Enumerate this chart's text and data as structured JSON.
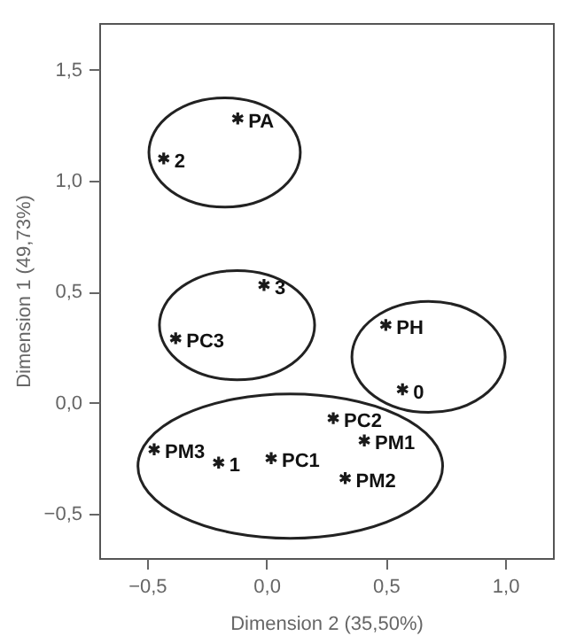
{
  "chart_data": {
    "type": "scatter",
    "xlabel": "Dimension 2 (35,50%)",
    "ylabel": "Dimension 1 (49,73%)",
    "x": [
      -0.12,
      -0.43,
      -0.01,
      -0.38,
      0.5,
      0.57,
      0.28,
      0.41,
      0.33,
      0.02,
      -0.47,
      -0.2
    ],
    "values": [
      1.28,
      1.1,
      0.53,
      0.29,
      0.35,
      0.06,
      -0.07,
      -0.17,
      -0.34,
      -0.25,
      -0.21,
      -0.27
    ],
    "color": "#1a1a1a",
    "marker": "cross",
    "grid": false,
    "xlim": [
      -0.7,
      1.2
    ],
    "ylim": [
      -0.7,
      1.71
    ],
    "xticks": [
      {
        "value": -0.5,
        "label": "−0,5"
      },
      {
        "value": 0,
        "label": "0,0"
      },
      {
        "value": 0.5,
        "label": "0,5"
      },
      {
        "value": 1,
        "label": "1,0"
      }
    ],
    "yticks": [
      {
        "value": -0.5,
        "label": "−0,5"
      },
      {
        "value": 0,
        "label": "0,0"
      },
      {
        "value": 0.5,
        "label": "0,5"
      },
      {
        "value": 1,
        "label": "1,0"
      },
      {
        "value": 1.5,
        "label": "1,5"
      }
    ],
    "annotations": [
      {
        "text": "PA",
        "x": -0.12,
        "y": 1.28
      },
      {
        "text": "2",
        "x": -0.43,
        "y": 1.1
      },
      {
        "text": "3",
        "x": -0.01,
        "y": 0.53
      },
      {
        "text": "PC3",
        "x": -0.38,
        "y": 0.29
      },
      {
        "text": "PH",
        "x": 0.5,
        "y": 0.35
      },
      {
        "text": "0",
        "x": 0.57,
        "y": 0.06
      },
      {
        "text": "PC2",
        "x": 0.28,
        "y": -0.07
      },
      {
        "text": "PM1",
        "x": 0.41,
        "y": -0.17
      },
      {
        "text": "PM2",
        "x": 0.33,
        "y": -0.34
      },
      {
        "text": "PC1",
        "x": 0.02,
        "y": -0.25
      },
      {
        "text": "PM3",
        "x": -0.47,
        "y": -0.21
      },
      {
        "text": "1",
        "x": -0.2,
        "y": -0.27
      }
    ]
  }
}
